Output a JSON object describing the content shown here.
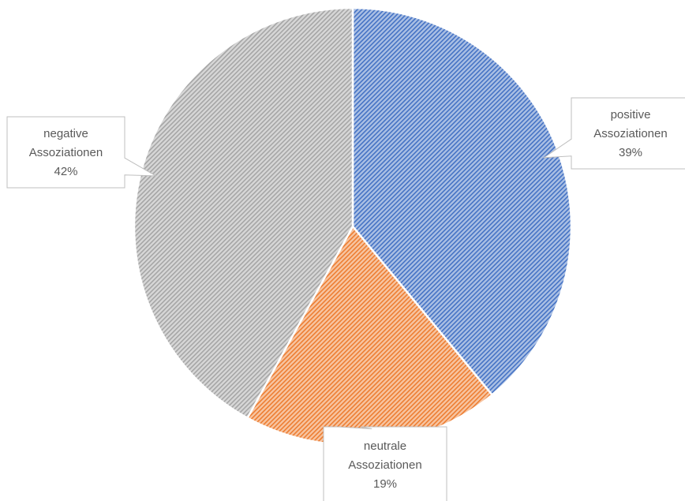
{
  "chart_data": {
    "type": "pie",
    "title": "",
    "slices": [
      {
        "label_line1": "positive",
        "label_line2": "Assoziationen",
        "value": 39,
        "percent_label": "39%",
        "color": "#4472c4"
      },
      {
        "label_line1": "neutrale",
        "label_line2": "Assoziationen",
        "value": 19,
        "percent_label": "19%",
        "color": "#ed7d31"
      },
      {
        "label_line1": "negative",
        "label_line2": "Assoziationen",
        "value": 42,
        "percent_label": "42%",
        "color": "#a5a5a5"
      }
    ],
    "start_angle_deg": 0,
    "direction": "clockwise",
    "fill_pattern": "diagonal-hatch",
    "legend": "none"
  }
}
